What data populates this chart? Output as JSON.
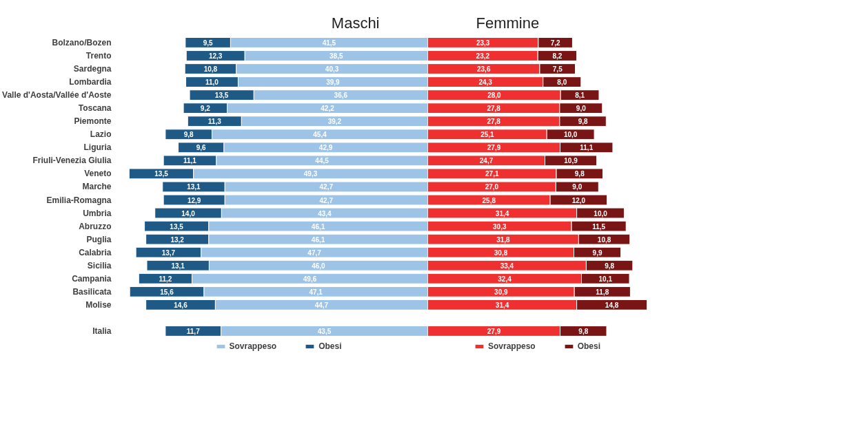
{
  "chart_data": [
    {
      "type": "bar",
      "orientation": "horizontal",
      "stacked": true,
      "title": "Maschi",
      "xlim": [
        62.8,
        0
      ],
      "tick_labels": "y",
      "legend": "bottom",
      "grid": false,
      "categories": [
        "Bolzano/Bozen",
        "Trento",
        "Sardegna",
        "Lombardia",
        "Valle d'Aosta/Vallée d'Aoste",
        "Toscana",
        "Piemonte",
        "Lazio",
        "Liguria",
        "Friuli-Venezia Giulia",
        "Veneto",
        "Marche",
        "Emilia-Romagna",
        "Umbria",
        "Abruzzo",
        "Puglia",
        "Calabria",
        "Sicilia",
        "Campania",
        "Basilicata",
        "Molise",
        null,
        "Italia"
      ],
      "series": [
        {
          "name": "Sovrappeso",
          "color": "#9dc3e6",
          "values": [
            41.5,
            38.5,
            40.3,
            39.9,
            36.6,
            42.2,
            39.2,
            45.4,
            42.9,
            44.5,
            49.3,
            42.7,
            42.7,
            43.4,
            46.1,
            46.1,
            47.7,
            46.0,
            49.6,
            47.1,
            44.7,
            null,
            43.5
          ],
          "value_labels": [
            "41,5",
            "38,5",
            "40,3",
            "39,9",
            "36,6",
            "42,2",
            "39,2",
            "45,4",
            "42,9",
            "44,5",
            "49,3",
            "42,7",
            "42,7",
            "43,4",
            "46,1",
            "46,1",
            "47,7",
            "46,0",
            "49,6",
            "47,1",
            "44,7",
            null,
            "43,5"
          ]
        },
        {
          "name": "Obesi",
          "color": "#1f5a87",
          "values": [
            9.5,
            12.3,
            10.8,
            11.0,
            13.5,
            9.2,
            11.3,
            9.8,
            9.6,
            11.1,
            13.5,
            13.1,
            12.9,
            14.0,
            13.5,
            13.2,
            13.7,
            13.1,
            11.2,
            15.6,
            14.6,
            null,
            11.7
          ],
          "value_labels": [
            "9,5",
            "12,3",
            "10,8",
            "11,0",
            "13,5",
            "9,2",
            "11,3",
            "9,8",
            "9,6",
            "11,1",
            "13,5",
            "13,1",
            "12,9",
            "14,0",
            "13,5",
            "13,2",
            "13,7",
            "13,1",
            "11,2",
            "15,6",
            "14,6",
            null,
            "11,7"
          ]
        }
      ]
    },
    {
      "type": "bar",
      "orientation": "horizontal",
      "stacked": true,
      "title": "Femmine",
      "xlim": [
        0,
        46.2
      ],
      "tick_labels": false,
      "legend": "bottom",
      "grid": false,
      "categories": [
        null,
        null,
        null,
        null,
        null,
        null,
        null,
        null,
        null,
        null,
        null,
        null,
        null,
        null,
        null,
        null,
        null,
        null,
        null,
        null,
        null,
        null,
        null
      ],
      "series": [
        {
          "name": "Sovrappeso",
          "color": "#ee3030",
          "values": [
            23.3,
            23.2,
            23.6,
            24.3,
            28.0,
            27.8,
            27.8,
            25.1,
            27.9,
            24.7,
            27.1,
            27.0,
            25.8,
            31.4,
            30.3,
            31.8,
            30.8,
            33.4,
            32.4,
            30.9,
            31.4,
            null,
            27.9
          ],
          "value_labels": [
            "23,3",
            "23,2",
            "23,6",
            "24,3",
            "28,0",
            "27,8",
            "27,8",
            "25,1",
            "27,9",
            "24,7",
            "27,1",
            "27,0",
            "25,8",
            "31,4",
            "30,3",
            "31,8",
            "30,8",
            "33,4",
            "32,4",
            "30,9",
            "31,4",
            null,
            "27,9"
          ]
        },
        {
          "name": "Obesi",
          "color": "#7a1515",
          "values": [
            7.2,
            8.2,
            7.5,
            8.0,
            8.1,
            9.0,
            9.8,
            10.0,
            11.1,
            10.9,
            9.8,
            9.0,
            12.0,
            10.0,
            11.5,
            10.8,
            9.9,
            9.8,
            10.1,
            11.8,
            14.8,
            null,
            9.8
          ],
          "value_labels": [
            "7,2",
            "8,2",
            "7,5",
            "8,0",
            "8,1",
            "9,0",
            "9,8",
            "10,0",
            "11,1",
            "10,9",
            "9,8",
            "9,0",
            "12,0",
            "10,0",
            "11,5",
            "10,8",
            "9,9",
            "9,8",
            "10,1",
            "11,8",
            "14,8",
            null,
            "9,8"
          ]
        }
      ]
    }
  ]
}
